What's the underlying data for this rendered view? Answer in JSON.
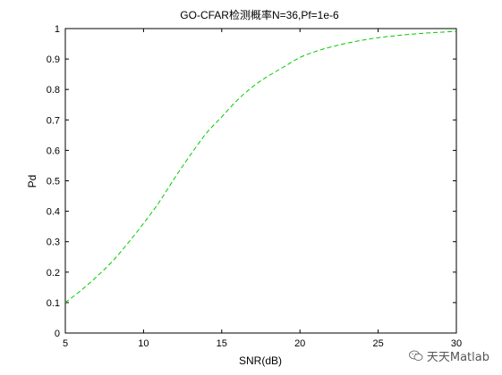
{
  "chart_data": {
    "type": "line",
    "title": "GO-CFAR检测概率N=36,Pf=1e-6",
    "xlabel": "SNR(dB)",
    "ylabel": "Pd",
    "xlim": [
      5,
      30
    ],
    "ylim": [
      0,
      1
    ],
    "x_ticks": [
      5,
      10,
      15,
      20,
      25,
      30
    ],
    "y_ticks": [
      0,
      0.1,
      0.2,
      0.3,
      0.4,
      0.5,
      0.6,
      0.7,
      0.8,
      0.9,
      1
    ],
    "grid": false,
    "line_style": "dashed",
    "color": "#00cc00",
    "x": [
      5,
      6,
      7,
      8,
      9,
      10,
      11,
      12,
      13,
      14,
      15,
      16,
      17,
      18,
      19,
      20,
      21,
      22,
      23,
      24,
      25,
      26,
      27,
      28,
      29,
      30
    ],
    "y": [
      0.1,
      0.14,
      0.185,
      0.235,
      0.295,
      0.36,
      0.43,
      0.51,
      0.585,
      0.655,
      0.71,
      0.765,
      0.81,
      0.845,
      0.875,
      0.905,
      0.925,
      0.94,
      0.952,
      0.962,
      0.97,
      0.976,
      0.981,
      0.985,
      0.988,
      0.991
    ]
  },
  "watermark": {
    "text": "天天Matlab",
    "icon": "wechat-icon"
  }
}
